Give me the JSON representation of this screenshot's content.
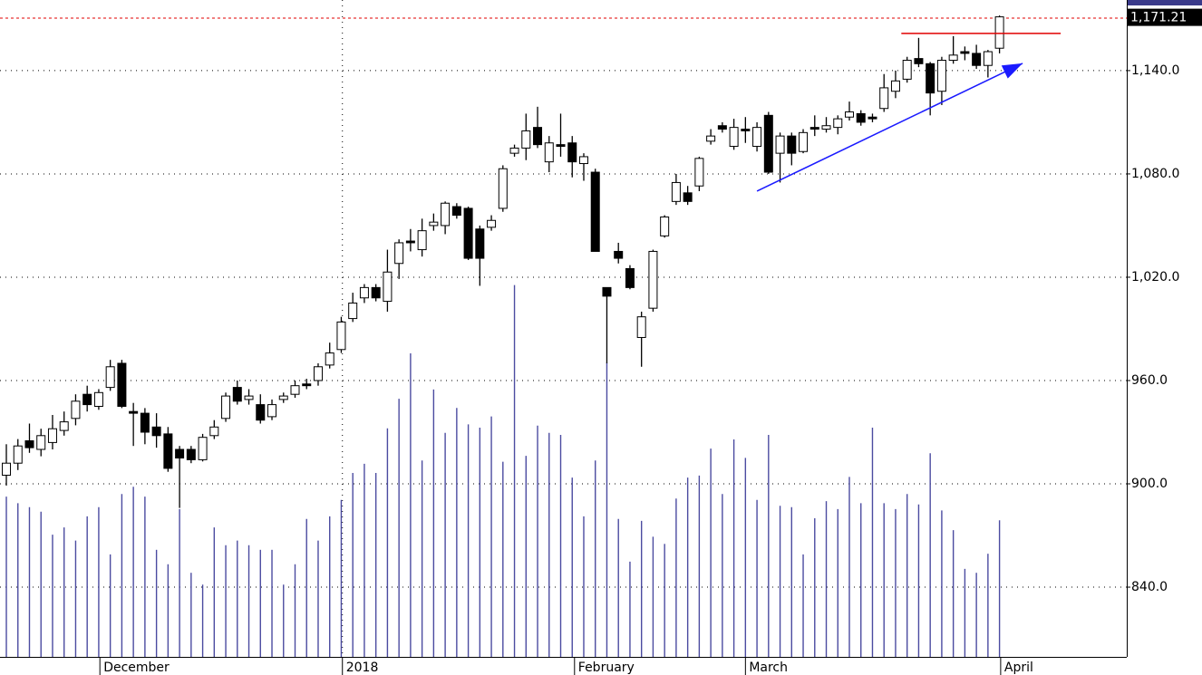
{
  "chart_data": {
    "type": "candlestick",
    "open": [
      905,
      912,
      925,
      920,
      924,
      931,
      938,
      952,
      945,
      956,
      970,
      942,
      941,
      933,
      929,
      920,
      920,
      914,
      928,
      938,
      956,
      949,
      946,
      939,
      949,
      952,
      958,
      960,
      969,
      978,
      996,
      1008,
      1014,
      1006,
      1028,
      1041,
      1036,
      1050,
      1050,
      1061,
      1060,
      1048,
      1049,
      1060,
      1092,
      1095,
      1107,
      1087,
      1097,
      1098,
      1086,
      1081,
      1014,
      1035,
      1025,
      985,
      1002,
      1044,
      1064,
      1069,
      1073,
      1099,
      1108,
      1096,
      1106,
      1096,
      1114,
      1092,
      1102,
      1093,
      1107,
      1106,
      1107,
      1113,
      1115,
      1113,
      1118,
      1128,
      1135,
      1147,
      1144,
      1128,
      1146,
      1151,
      1150,
      1143,
      1153
    ],
    "high": [
      923,
      926,
      935,
      932,
      940,
      942,
      952,
      957,
      955,
      972,
      972,
      947,
      944,
      941,
      933,
      922,
      922,
      929,
      937,
      953,
      960,
      955,
      952,
      949,
      953,
      960,
      961,
      970,
      982,
      997,
      1011,
      1016,
      1016,
      1036,
      1042,
      1048,
      1054,
      1057,
      1064,
      1063,
      1061,
      1050,
      1056,
      1085,
      1097,
      1115,
      1119,
      1102,
      1115,
      1102,
      1092,
      1083,
      1014,
      1040,
      1027,
      1000,
      1036,
      1056,
      1080,
      1073,
      1090,
      1106,
      1110,
      1112,
      1113,
      1110,
      1116,
      1104,
      1104,
      1106,
      1114,
      1113,
      1114,
      1122,
      1117,
      1115,
      1138,
      1140,
      1148,
      1159,
      1145,
      1148,
      1160,
      1154,
      1155,
      1152,
      1172
    ],
    "low": [
      899,
      908,
      918,
      916,
      920,
      928,
      934,
      942,
      943,
      954,
      944,
      922,
      923,
      921,
      907,
      886,
      912,
      913,
      926,
      936,
      946,
      946,
      935,
      937,
      947,
      950,
      955,
      957,
      967,
      976,
      994,
      1005,
      1006,
      1000,
      1019,
      1035,
      1032,
      1047,
      1045,
      1054,
      1030,
      1015,
      1047,
      1058,
      1090,
      1088,
      1095,
      1081,
      1090,
      1078,
      1076,
      1035,
      970,
      1028,
      1013,
      968,
      1000,
      1043,
      1062,
      1062,
      1070,
      1097,
      1104,
      1094,
      1098,
      1093,
      1080,
      1075,
      1085,
      1092,
      1102,
      1104,
      1103,
      1111,
      1108,
      1110,
      1116,
      1124,
      1133,
      1142,
      1114,
      1120,
      1144,
      1146,
      1141,
      1136,
      1150
    ],
    "close": [
      912,
      922,
      921,
      928,
      932,
      936,
      948,
      946,
      953,
      968,
      945,
      941,
      930,
      928,
      909,
      915,
      914,
      927,
      933,
      951,
      948,
      951,
      937,
      946,
      951,
      957,
      957,
      968,
      976,
      994,
      1005,
      1014,
      1008,
      1023,
      1040,
      1040,
      1047,
      1052,
      1063,
      1056,
      1031,
      1031,
      1053,
      1083,
      1095,
      1105,
      1097,
      1098,
      1096,
      1087,
      1090,
      1035,
      1009,
      1031,
      1014,
      997,
      1035,
      1055,
      1075,
      1064,
      1089,
      1102,
      1106,
      1107,
      1105,
      1107,
      1081,
      1102,
      1092,
      1104,
      1106,
      1108,
      1112,
      1116,
      1110,
      1112,
      1130,
      1134,
      1146,
      1144,
      1127,
      1146,
      1149,
      1150,
      1143,
      1151,
      1171.21
    ],
    "volume": [
      24.4,
      23.4,
      22.8,
      22.1,
      18.6,
      19.7,
      17.7,
      21.4,
      22.8,
      15.6,
      24.8,
      25.9,
      24.4,
      16.3,
      14.1,
      22.5,
      12.8,
      11,
      19.7,
      17,
      17.7,
      17,
      16.3,
      16.3,
      11,
      14.1,
      21,
      17.7,
      21.4,
      23.9,
      28,
      29.4,
      28,
      34.8,
      39.3,
      46.2,
      29.9,
      40.7,
      34.1,
      37.9,
      35.4,
      34.9,
      36.6,
      29.7,
      56.6,
      30.6,
      35.2,
      34.1,
      33.8,
      27.3,
      21.4,
      29.9,
      44.8,
      21,
      14.5,
      20.7,
      18.3,
      17.2,
      24.1,
      27.3,
      27.6,
      31.7,
      24.8,
      33.1,
      30.3,
      23.9,
      33.8,
      23,
      22.8,
      15.6,
      21.1,
      23.7,
      22.5,
      27.4,
      23.4,
      34.9,
      23.4,
      22.5,
      24.8,
      23.2,
      31,
      22.3,
      19.3,
      13.4,
      12.8,
      15.7,
      20.8
    ],
    "candle_color": "#000000",
    "volume_color": "#4b4ba0",
    "xlim": [
      -0.55,
      97.02
    ],
    "ylim": [
      799.5,
      1181
    ],
    "y2lim": [
      0,
      100
    ],
    "yticks": [
      {
        "value": 840,
        "label": "840.0"
      },
      {
        "value": 900,
        "label": "900.0"
      },
      {
        "value": 960,
        "label": "960.0"
      },
      {
        "value": 1020,
        "label": "1,020.0"
      },
      {
        "value": 1080,
        "label": "1,080.0"
      },
      {
        "value": 1140,
        "label": "1,140.0"
      }
    ],
    "xticks": [
      {
        "value": 8.1,
        "label": "December"
      },
      {
        "value": 29.1,
        "label": "2018"
      },
      {
        "value": 49.2,
        "label": "February"
      },
      {
        "value": 64,
        "label": "March"
      },
      {
        "value": 86.1,
        "label": "April"
      }
    ],
    "xgrid_at": [
      29.1
    ],
    "grid": true,
    "hlines": [
      {
        "y": 1170.5,
        "color": "#e00000"
      }
    ],
    "segments": [
      {
        "x": [
          77.5,
          91.3
        ],
        "y": [
          1161.6,
          1161.6
        ],
        "color": "#e00000",
        "arrow": false
      },
      {
        "x": [
          65,
          88
        ],
        "y": [
          1070,
          1144.2
        ],
        "color": "#1a1aff",
        "arrow": true
      }
    ],
    "last_label": {
      "value": 1171.21,
      "label": "1,171.21"
    }
  }
}
